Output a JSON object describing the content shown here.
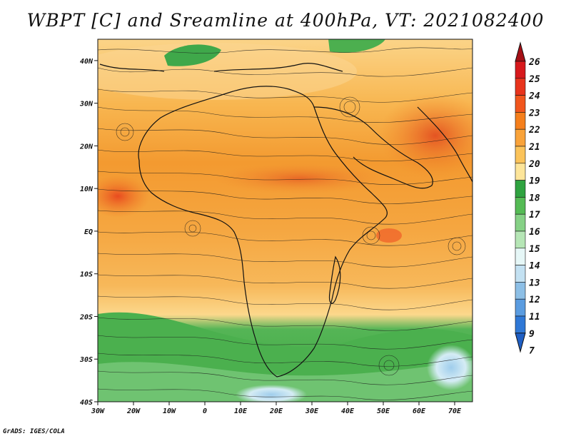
{
  "title": "WBPT [C] and Sreamline at 400hPa, VT: 2021082400",
  "credit": "GrADS: IGES/COLA",
  "map": {
    "lon_range": [
      -30,
      75
    ],
    "lat_range": [
      -40,
      45
    ],
    "lon_ticks": [
      "30W",
      "20W",
      "10W",
      "0",
      "10E",
      "20E",
      "30E",
      "40E",
      "50E",
      "60E",
      "70E"
    ],
    "lat_ticks": [
      "40N",
      "30N",
      "20N",
      "10N",
      "EQ",
      "10S",
      "20S",
      "30S",
      "40S"
    ]
  },
  "colorbar": {
    "labels": [
      "26",
      "25",
      "24",
      "23",
      "22",
      "21",
      "20",
      "19",
      "18",
      "17",
      "16",
      "15",
      "14",
      "13",
      "12",
      "11",
      "9",
      "7"
    ],
    "colors": [
      "#a50f15",
      "#d7191c",
      "#e8341c",
      "#f1561d",
      "#f57f1c",
      "#f9a33a",
      "#fbc35a",
      "#fde59a",
      "#2fa340",
      "#55bb55",
      "#86d186",
      "#b6e6b6",
      "#e6f7f7",
      "#c3e1f2",
      "#8dbfe6",
      "#5a9ce0",
      "#2f78d6",
      "#1f5fc4"
    ]
  }
}
